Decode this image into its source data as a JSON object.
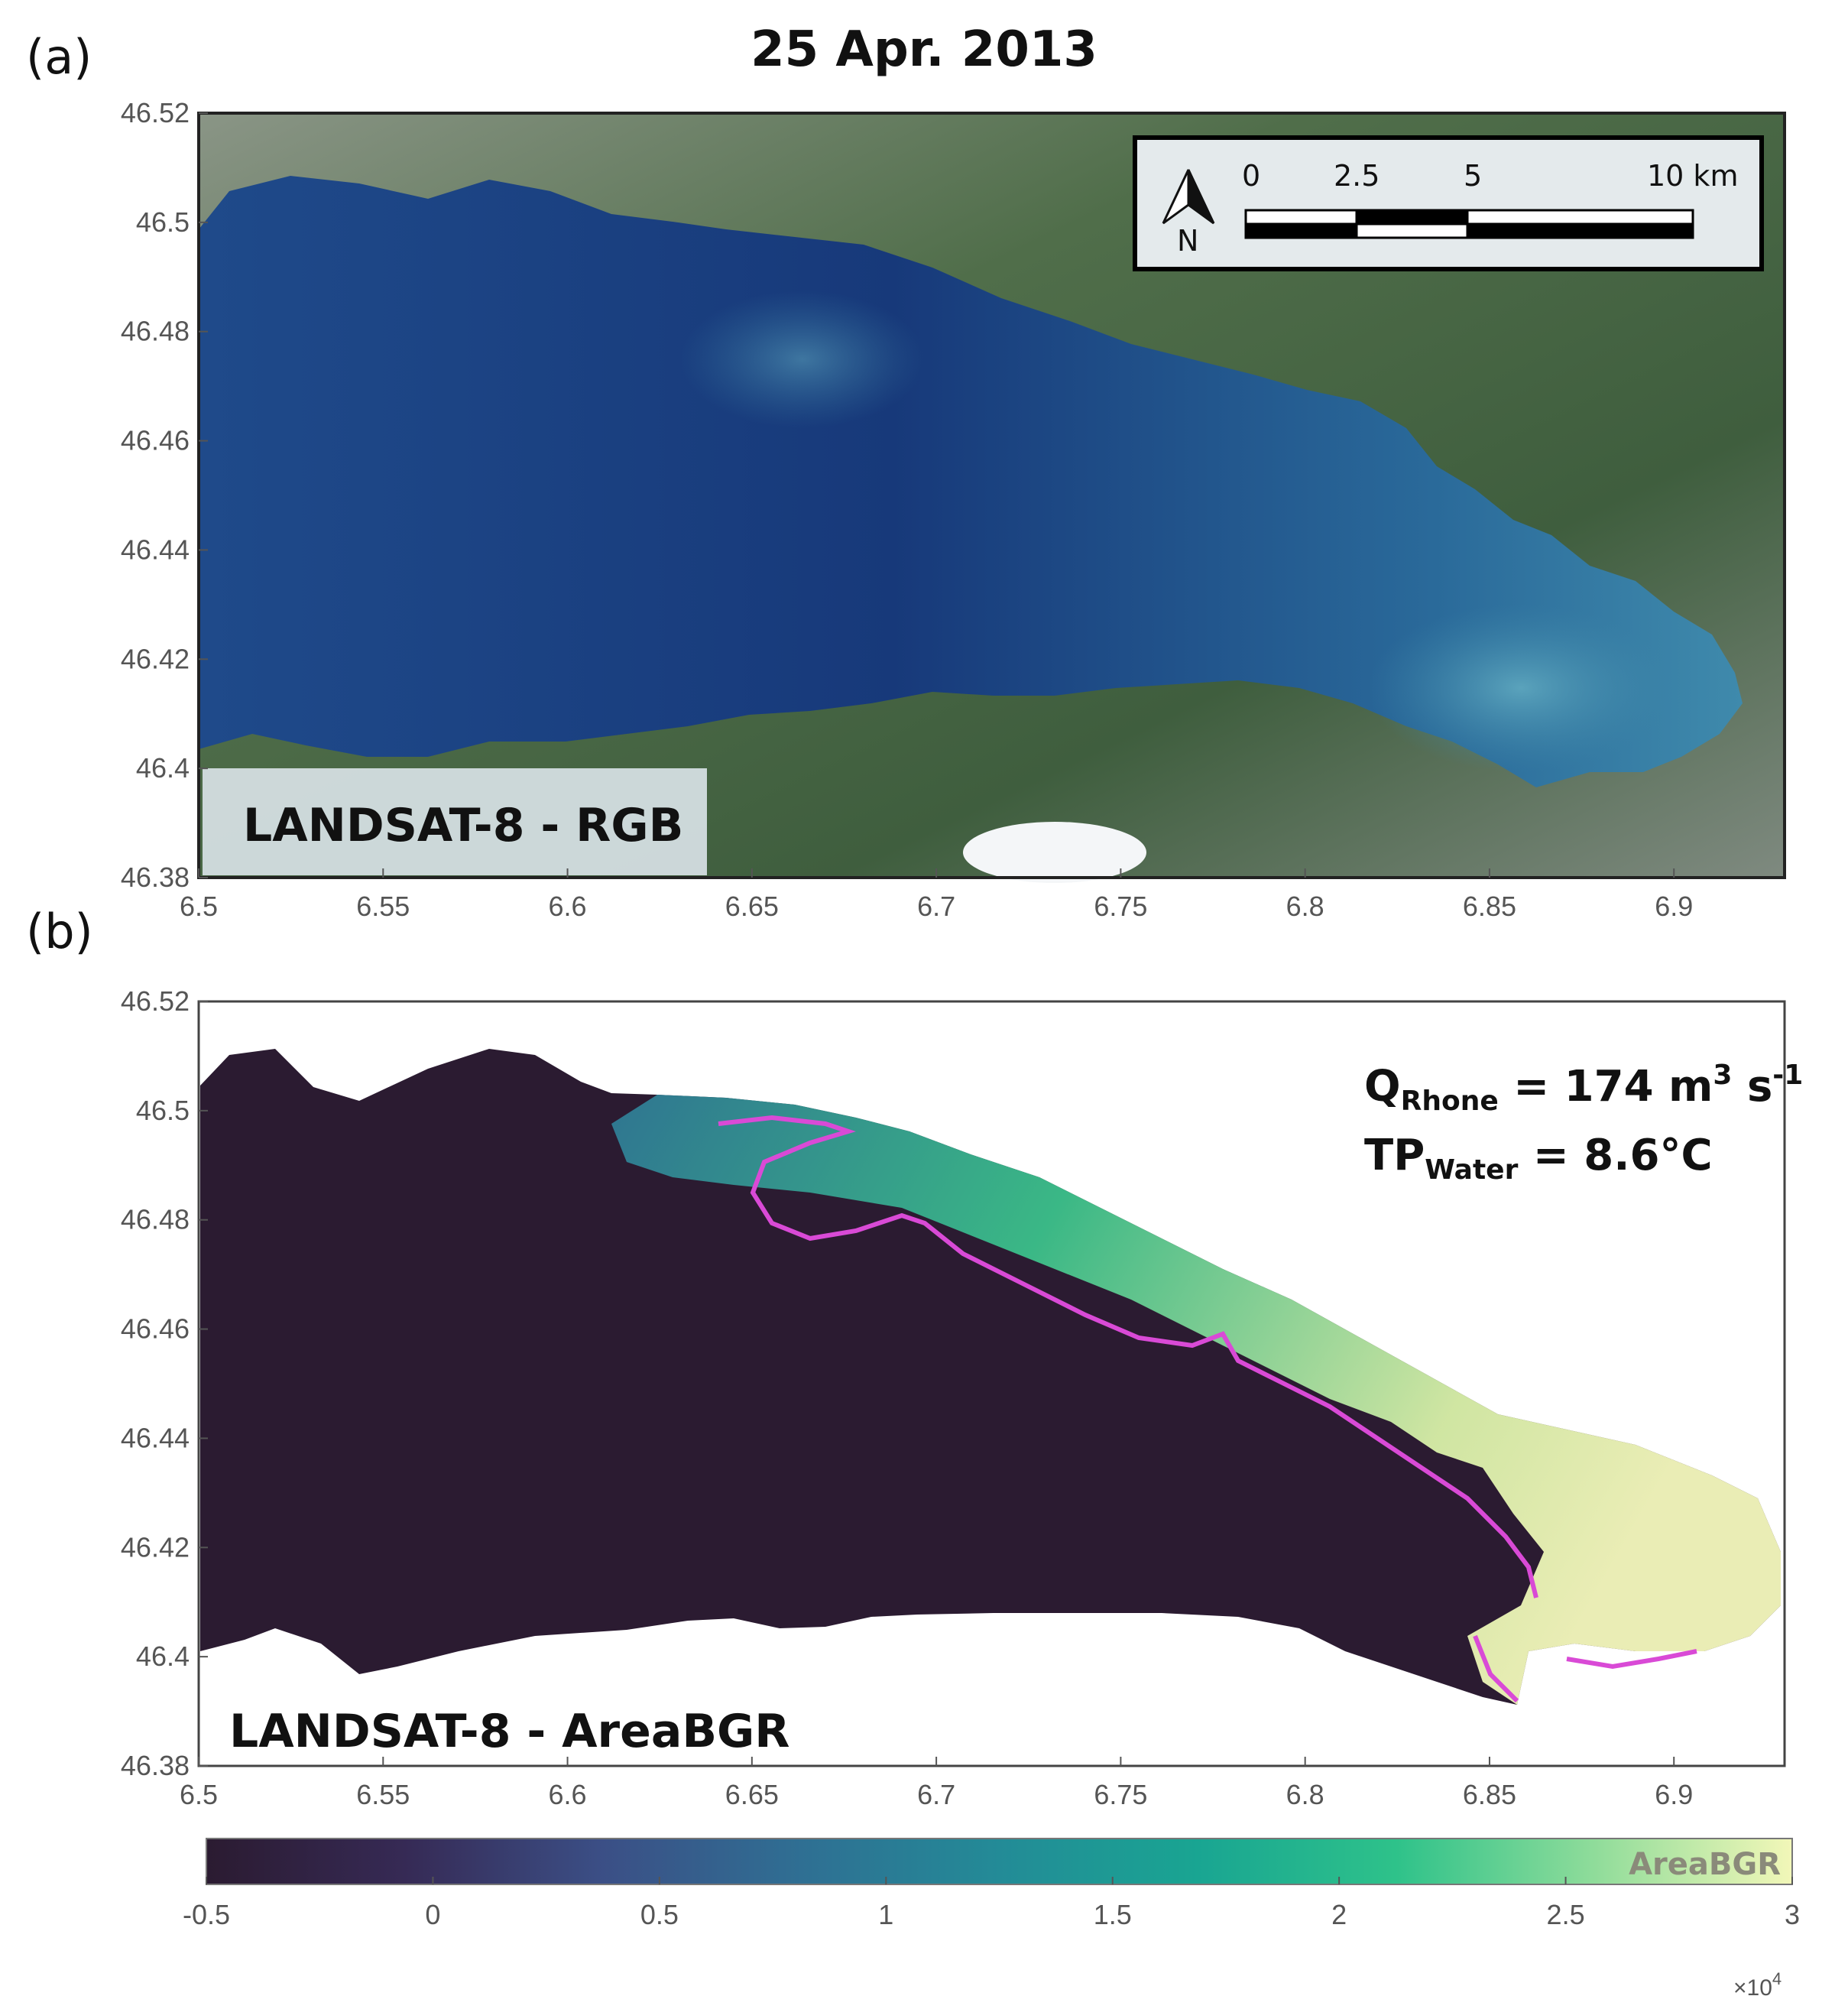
{
  "title": "25 Apr. 2013",
  "panel_a": {
    "label": "(a)",
    "overlay_label": "LANDSAT-8 - RGB",
    "north_label": "N",
    "scalebar": {
      "labels": [
        "0",
        "2.5",
        "5",
        "10 km"
      ],
      "km": [
        0,
        2.5,
        5,
        10
      ]
    },
    "x_ticks": [
      "6.5",
      "6.55",
      "6.6",
      "6.65",
      "6.7",
      "6.75",
      "6.8",
      "6.85",
      "6.9"
    ],
    "y_ticks": [
      "46.52",
      "46.5",
      "46.48",
      "46.46",
      "46.44",
      "46.42",
      "46.4",
      "46.38"
    ],
    "xlim": [
      6.5,
      6.93
    ],
    "ylim": [
      46.38,
      46.52
    ]
  },
  "panel_b": {
    "label": "(b)",
    "overlay_label": "LANDSAT-8 - AreaBGR",
    "q_prefix": "Q",
    "q_sub": "Rhone",
    "q_value": " = 174 m",
    "q_sup1": "3",
    "q_unit": " s",
    "q_sup2": "-1",
    "tp_prefix": "TP",
    "tp_sub": "Water",
    "tp_value": " = 8.6°C",
    "x_ticks": [
      "6.5",
      "6.55",
      "6.6",
      "6.65",
      "6.7",
      "6.75",
      "6.8",
      "6.85",
      "6.9"
    ],
    "y_ticks": [
      "46.52",
      "46.5",
      "46.48",
      "46.46",
      "46.44",
      "46.42",
      "46.4",
      "46.38"
    ],
    "xlim": [
      6.5,
      6.93
    ],
    "ylim": [
      46.38,
      46.52
    ]
  },
  "colorbar": {
    "label": "AreaBGR",
    "ticks": [
      "-0.5",
      "0",
      "0.5",
      "1",
      "1.5",
      "2",
      "2.5",
      "3"
    ],
    "range": [
      -0.5,
      3
    ],
    "exponent_base": "×10",
    "exponent": "4",
    "colors": [
      "#2b1b31",
      "#362a55",
      "#3b4f86",
      "#2f6f93",
      "#238b97",
      "#19a592",
      "#2ec28a",
      "#8fdc9a",
      "#f2f7b8"
    ]
  },
  "colors": {
    "lake_deep": "#1a3d7c",
    "lake_shallow": "#3f87a8",
    "land": "#4d6b45",
    "outline": "#d94ad6"
  }
}
